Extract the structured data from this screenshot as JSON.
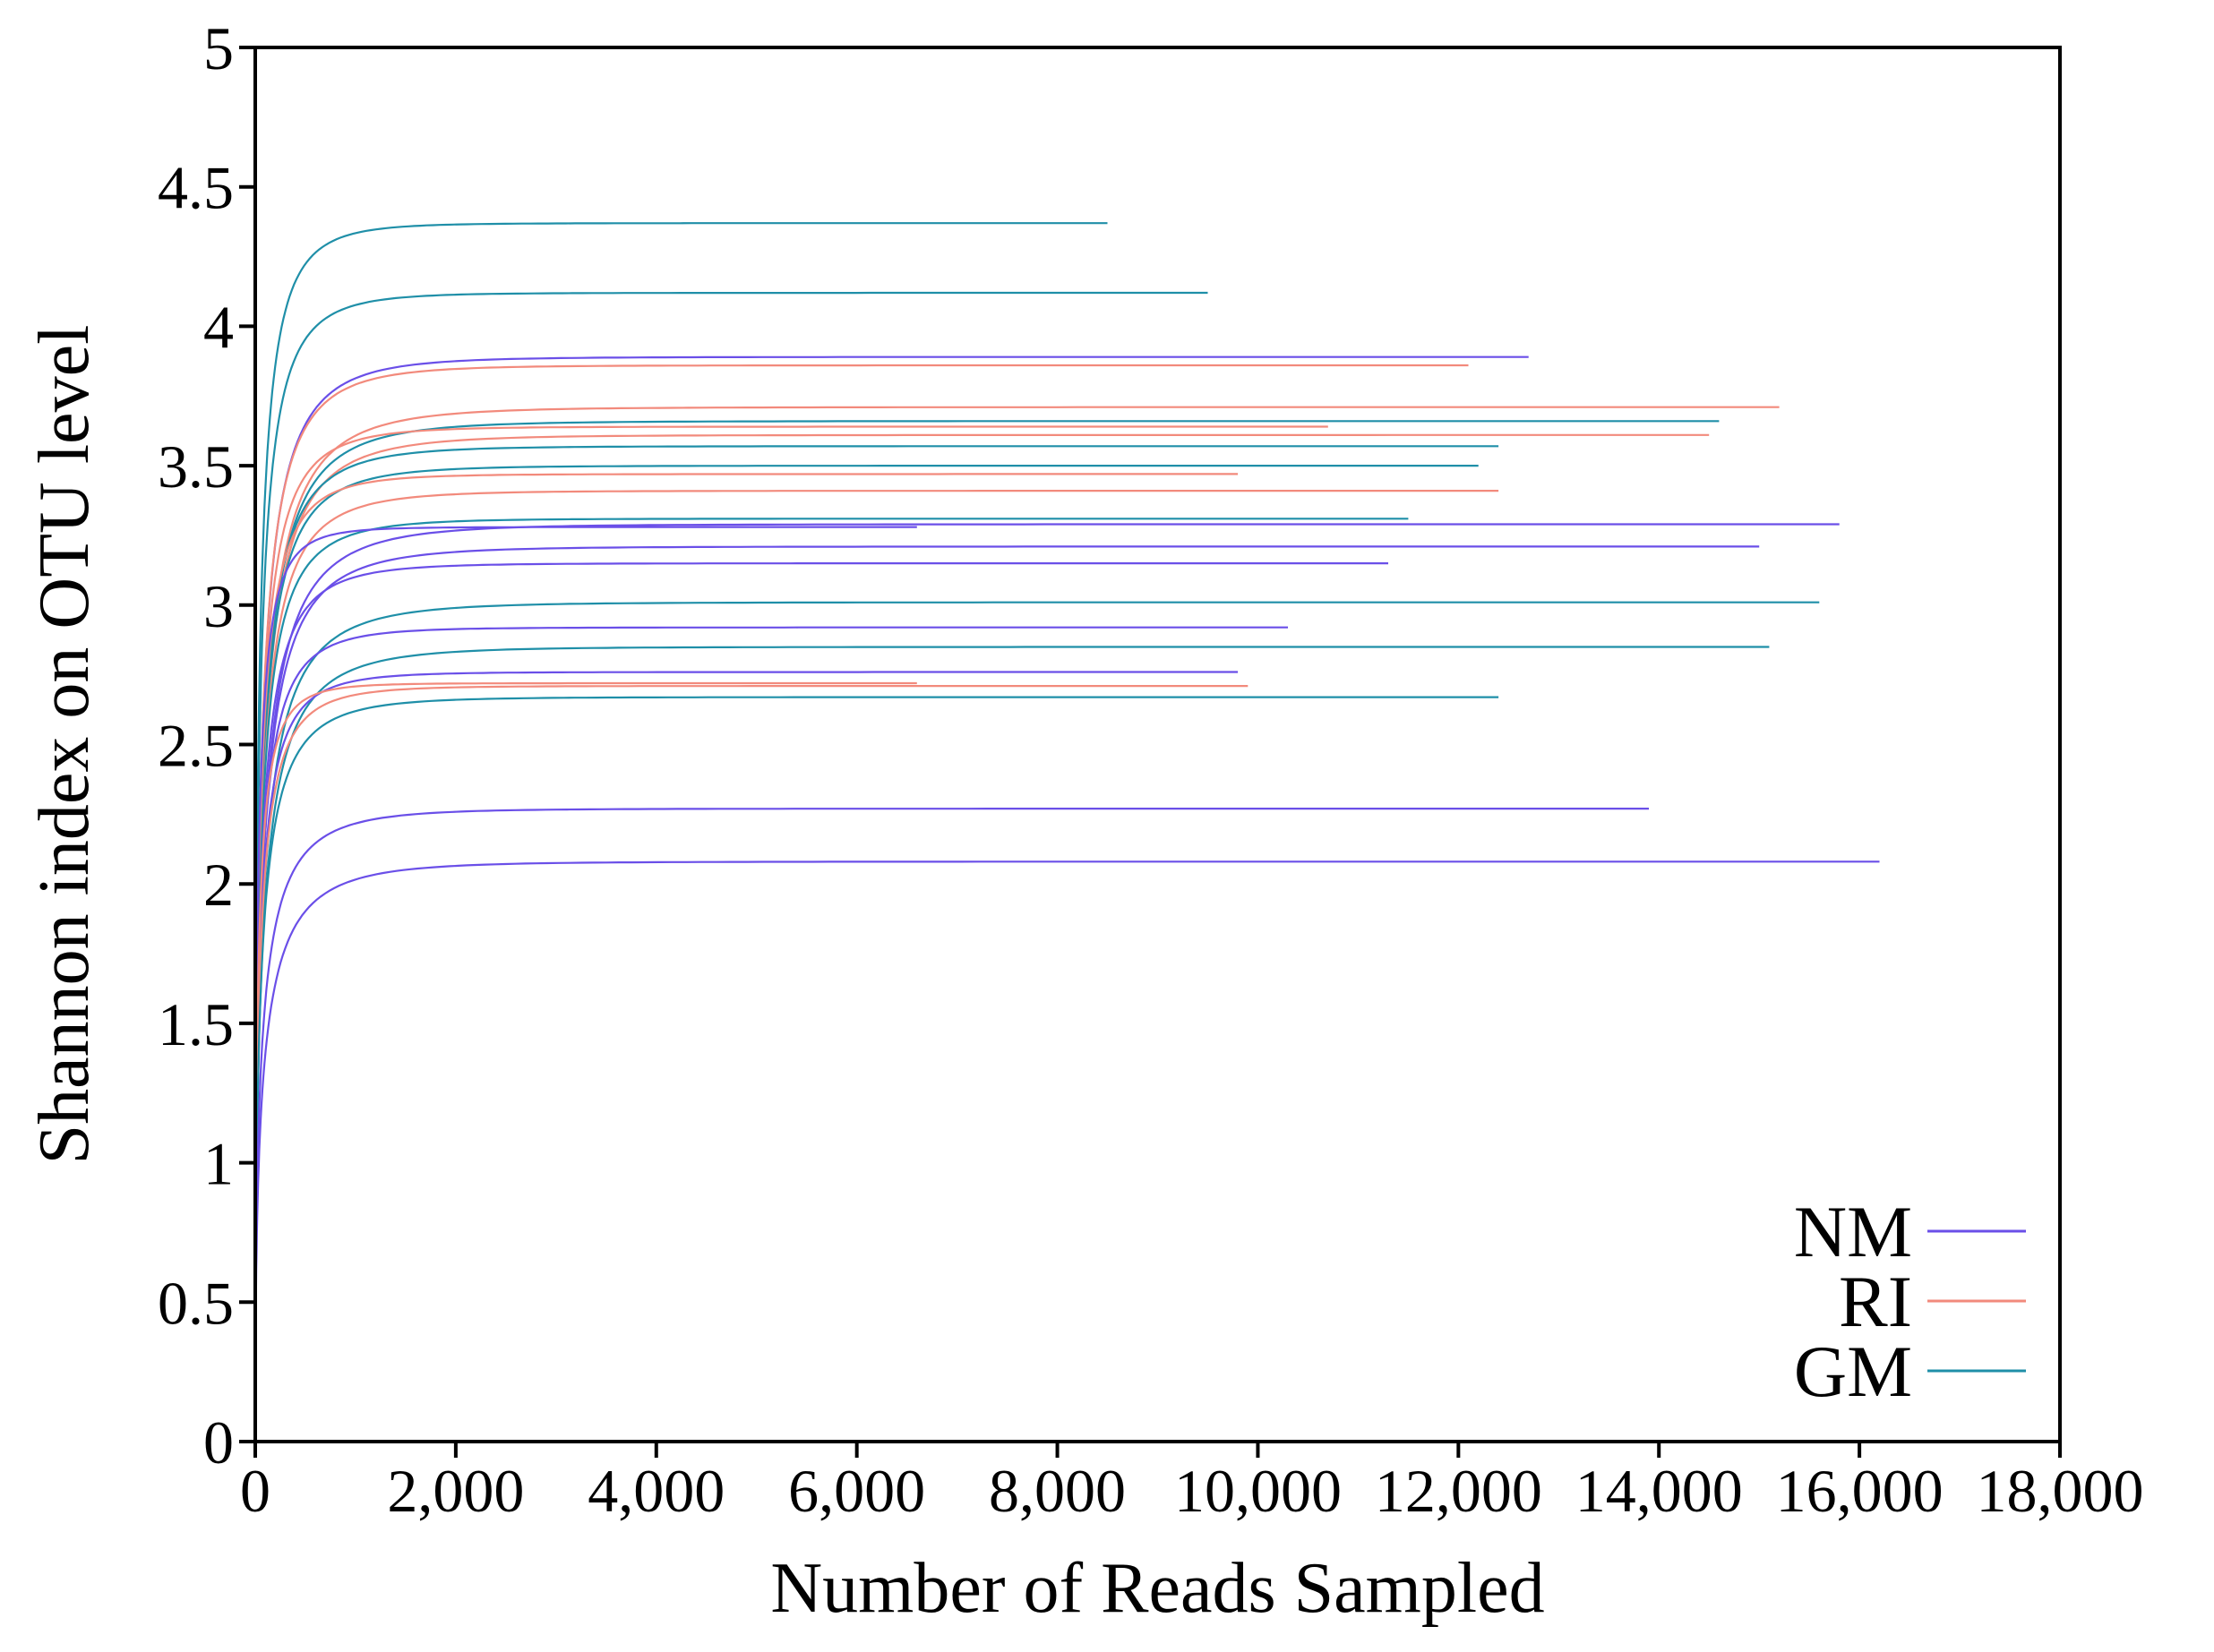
{
  "chart_data": {
    "type": "line",
    "xlabel": "Number of Reads Sampled",
    "ylabel": "Shannon index on OTU level",
    "xlim": [
      0,
      18000
    ],
    "ylim": [
      0,
      5
    ],
    "x_ticks": [
      0,
      2000,
      4000,
      6000,
      8000,
      10000,
      12000,
      14000,
      16000,
      18000
    ],
    "x_tick_labels": [
      "0",
      "2,000",
      "4,000",
      "6,000",
      "8,000",
      "10,000",
      "12,000",
      "14,000",
      "16,000",
      "18,000"
    ],
    "y_ticks": [
      0,
      0.5,
      1,
      1.5,
      2,
      2.5,
      3,
      3.5,
      4,
      4.5,
      5
    ],
    "y_tick_labels": [
      "0",
      "0.5",
      "1",
      "1.5",
      "2",
      "2.5",
      "3",
      "3.5",
      "4",
      "4.5",
      "5"
    ],
    "grid": false,
    "legend_position": "bottom-right",
    "legend": [
      {
        "label": "NM",
        "color": "#6a4fe8"
      },
      {
        "label": "RI",
        "color": "#f28a7c"
      },
      {
        "label": "GM",
        "color": "#1f8fa8"
      }
    ],
    "group_colors": {
      "NM": "#6a4fe8",
      "RI": "#f28a7c",
      "GM": "#1f8fa8"
    },
    "series": [
      {
        "group": "GM",
        "max_reads": 8500,
        "final": 4.37
      },
      {
        "group": "GM",
        "max_reads": 9500,
        "final": 4.12
      },
      {
        "group": "NM",
        "max_reads": 12700,
        "final": 3.89
      },
      {
        "group": "RI",
        "max_reads": 12100,
        "final": 3.86
      },
      {
        "group": "RI",
        "max_reads": 15200,
        "final": 3.71
      },
      {
        "group": "GM",
        "max_reads": 14600,
        "final": 3.66
      },
      {
        "group": "RI",
        "max_reads": 10700,
        "final": 3.64
      },
      {
        "group": "RI",
        "max_reads": 14500,
        "final": 3.61
      },
      {
        "group": "GM",
        "max_reads": 12400,
        "final": 3.57
      },
      {
        "group": "GM",
        "max_reads": 12200,
        "final": 3.5
      },
      {
        "group": "RI",
        "max_reads": 9800,
        "final": 3.47
      },
      {
        "group": "RI",
        "max_reads": 12400,
        "final": 3.41
      },
      {
        "group": "GM",
        "max_reads": 11500,
        "final": 3.31
      },
      {
        "group": "NM",
        "max_reads": 15800,
        "final": 3.29
      },
      {
        "group": "NM",
        "max_reads": 6600,
        "final": 3.28
      },
      {
        "group": "NM",
        "max_reads": 15000,
        "final": 3.21
      },
      {
        "group": "NM",
        "max_reads": 11300,
        "final": 3.15
      },
      {
        "group": "GM",
        "max_reads": 15600,
        "final": 3.01
      },
      {
        "group": "NM",
        "max_reads": 10300,
        "final": 2.92
      },
      {
        "group": "GM",
        "max_reads": 15100,
        "final": 2.85
      },
      {
        "group": "NM",
        "max_reads": 9800,
        "final": 2.76
      },
      {
        "group": "RI",
        "max_reads": 9900,
        "final": 2.71
      },
      {
        "group": "RI",
        "max_reads": 6600,
        "final": 2.72
      },
      {
        "group": "GM",
        "max_reads": 12400,
        "final": 2.67
      },
      {
        "group": "NM",
        "max_reads": 13900,
        "final": 2.27
      },
      {
        "group": "NM",
        "max_reads": 16200,
        "final": 2.08
      }
    ]
  }
}
